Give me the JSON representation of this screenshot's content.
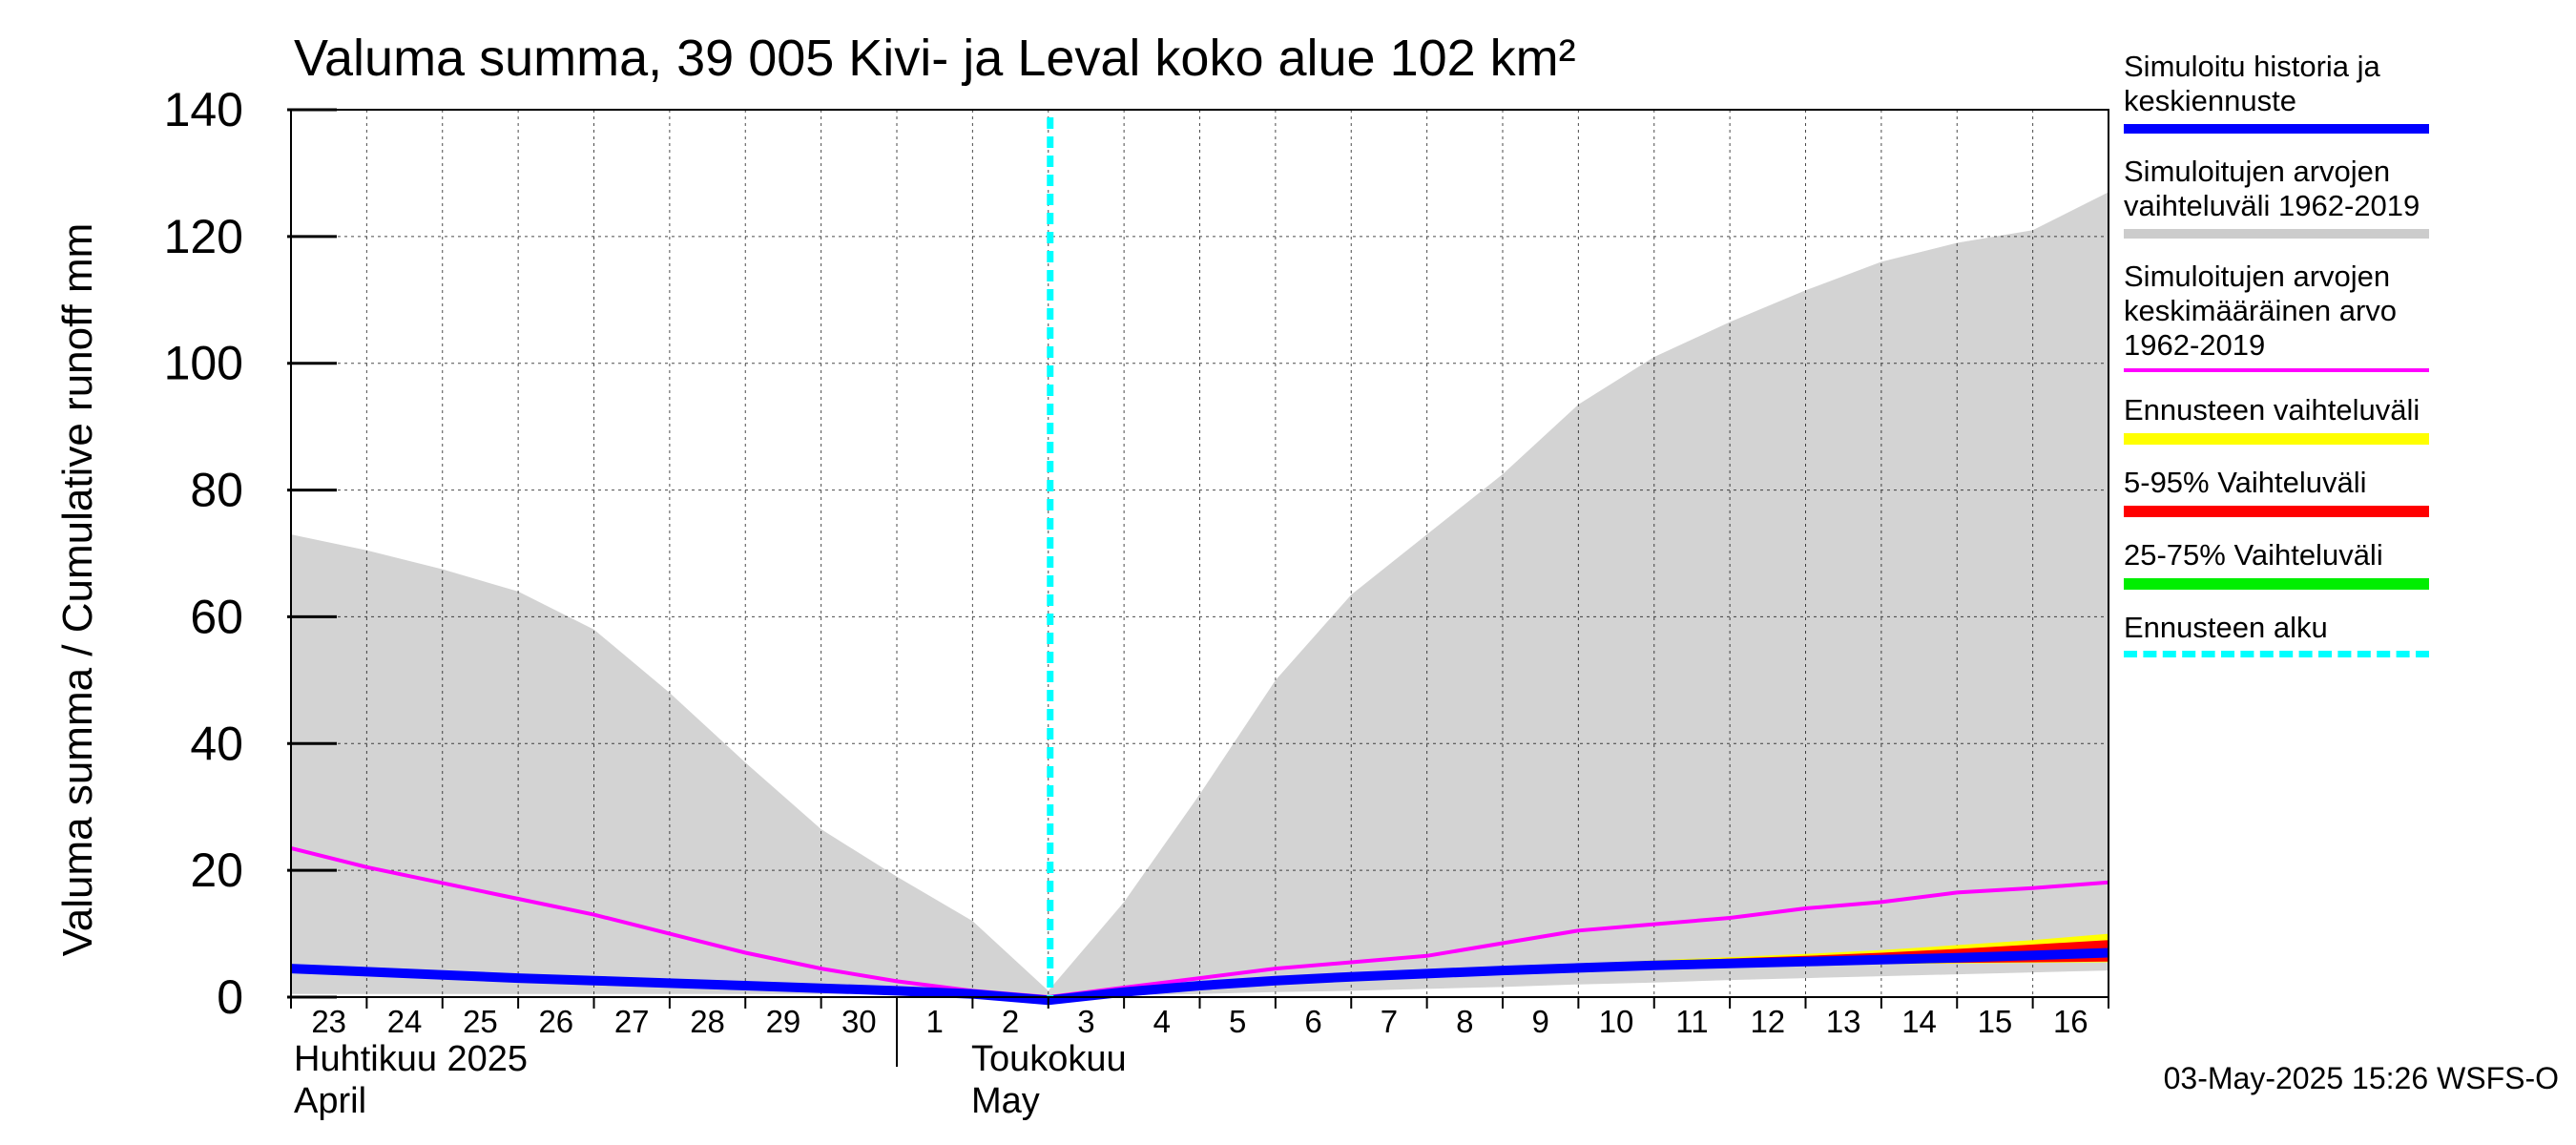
{
  "chart_data": {
    "type": "area",
    "title": "Valuma summa, 39 005 Kivi- ja Leval koko alue 102 km²",
    "ylabel": "Valuma summa / Cumulative runoff    mm",
    "ylim": [
      0,
      140
    ],
    "yticks": [
      0,
      20,
      40,
      60,
      80,
      100,
      120,
      140
    ],
    "x_tick_labels": [
      "23",
      "24",
      "25",
      "26",
      "27",
      "28",
      "29",
      "30",
      "1",
      "2",
      "3",
      "4",
      "5",
      "6",
      "7",
      "8",
      "9",
      "10",
      "11",
      "12",
      "13",
      "14",
      "15",
      "16"
    ],
    "x_dates": [
      "2025-04-23",
      "2025-04-24",
      "2025-04-25",
      "2025-04-26",
      "2025-04-27",
      "2025-04-28",
      "2025-04-29",
      "2025-04-30",
      "2025-05-01",
      "2025-05-02",
      "2025-05-03",
      "2025-05-04",
      "2025-05-05",
      "2025-05-06",
      "2025-05-07",
      "2025-05-08",
      "2025-05-09",
      "2025-05-10",
      "2025-05-11",
      "2025-05-12",
      "2025-05-13",
      "2025-05-14",
      "2025-05-15",
      "2025-05-16",
      "2025-05-17"
    ],
    "month_labels": [
      {
        "fi": "Huhtikuu  2025",
        "en": "April"
      },
      {
        "fi": "Toukokuu",
        "en": "May"
      }
    ],
    "forecast_start": "2025-05-03",
    "series": [
      {
        "name": "Simuloitujen arvojen vaihteluväli 1962-2019",
        "color": "#d3d3d3",
        "kind": "band",
        "upper": [
          73,
          70.5,
          67.5,
          64,
          58,
          48,
          37,
          26.5,
          19,
          12,
          1,
          15,
          32,
          50,
          63.5,
          73,
          82.5,
          93.5,
          101,
          106.5,
          111.5,
          116,
          119,
          121,
          127
        ],
        "lower": [
          0.5,
          0.5,
          0.5,
          0.5,
          0.5,
          0.5,
          0.5,
          0.5,
          0.5,
          0.5,
          0,
          0.3,
          0.5,
          0.8,
          1,
          1.3,
          1.6,
          2,
          2.3,
          2.7,
          3,
          3.3,
          3.6,
          3.9,
          4.2
        ]
      },
      {
        "name": "Simuloitujen arvojen keskimääräinen arvo 1962-2019",
        "color": "#ff00ff",
        "kind": "line",
        "values": [
          23.5,
          20.5,
          18,
          15.5,
          13,
          10,
          7,
          4.5,
          2.5,
          1,
          0,
          1.5,
          3,
          4.5,
          5.5,
          6.5,
          8.5,
          10.5,
          11.5,
          12.5,
          14,
          15,
          16.5,
          17.2,
          18.1
        ]
      },
      {
        "name": "Ennusteen vaihteluväli",
        "color": "#ffff00",
        "kind": "band",
        "upper": [
          null,
          null,
          null,
          null,
          null,
          null,
          null,
          null,
          null,
          null,
          0,
          1.2,
          2.2,
          3,
          3.7,
          4.3,
          4.8,
          5.3,
          5.8,
          6.3,
          6.8,
          7.4,
          8.2,
          9,
          10
        ],
        "lower": [
          null,
          null,
          null,
          null,
          null,
          null,
          null,
          null,
          null,
          null,
          0,
          0.8,
          1.6,
          2.3,
          2.9,
          3.4,
          3.8,
          4.2,
          4.5,
          4.8,
          5,
          5.2,
          5.3,
          5.4,
          5.5
        ]
      },
      {
        "name": "5-95% Vaihteluväli",
        "color": "#ff0000",
        "kind": "band",
        "upper": [
          null,
          null,
          null,
          null,
          null,
          null,
          null,
          null,
          null,
          null,
          0,
          1.1,
          2.1,
          2.9,
          3.6,
          4.2,
          4.7,
          5.2,
          5.6,
          6.1,
          6.5,
          7,
          7.6,
          8.3,
          9
        ],
        "lower": [
          null,
          null,
          null,
          null,
          null,
          null,
          null,
          null,
          null,
          null,
          0,
          0.9,
          1.7,
          2.4,
          3,
          3.5,
          3.9,
          4.3,
          4.6,
          4.9,
          5.1,
          5.3,
          5.4,
          5.5,
          5.6
        ]
      },
      {
        "name": "25-75% Vaihteluväli",
        "color": "#00dd00",
        "kind": "band",
        "upper": [
          null,
          null,
          null,
          null,
          null,
          null,
          null,
          null,
          null,
          null,
          0,
          1,
          1.9,
          2.7,
          3.3,
          3.9,
          4.4,
          4.8,
          5.2,
          5.6,
          6,
          6.3,
          6.7,
          7.1,
          7.6
        ],
        "lower": [
          null,
          null,
          null,
          null,
          null,
          null,
          null,
          null,
          null,
          null,
          0,
          0.9,
          1.8,
          2.5,
          3.1,
          3.6,
          4.1,
          4.5,
          4.9,
          5.2,
          5.5,
          5.7,
          5.9,
          6.1,
          6.3
        ]
      },
      {
        "name": "Simuloitu historia ja keskiennuste",
        "color": "#0000ff",
        "kind": "line",
        "values": [
          4.5,
          4,
          3.5,
          3,
          2.6,
          2.2,
          1.8,
          1.4,
          1,
          0.5,
          -0.5,
          0.8,
          1.8,
          2.6,
          3.2,
          3.7,
          4.2,
          4.6,
          5,
          5.3,
          5.6,
          5.9,
          6.2,
          6.6,
          7
        ]
      }
    ],
    "legend_position": "right",
    "grid": true
  },
  "legend": [
    {
      "label": "Simuloitu historia ja\nkeskiennuste",
      "color": "#0000ff",
      "style": "solid"
    },
    {
      "label": "Simuloitujen arvojen\nvaihteluväli 1962-2019",
      "color": "#cccccc",
      "style": "solid"
    },
    {
      "label": "Simuloitujen arvojen\nkeskimääräinen arvo\n   1962-2019",
      "color": "#ff00ff",
      "style": "thin"
    },
    {
      "label": "Ennusteen vaihteluväli",
      "color": "#ffff00",
      "style": "solid"
    },
    {
      "label": "5-95% Vaihteluväli",
      "color": "#ff0000",
      "style": "solid"
    },
    {
      "label": "25-75% Vaihteluväli",
      "color": "#00ee00",
      "style": "solid"
    },
    {
      "label": "Ennusteen alku",
      "color": "#00ffff",
      "style": "dashed"
    }
  ],
  "footer": "03-May-2025 15:26 WSFS-O"
}
